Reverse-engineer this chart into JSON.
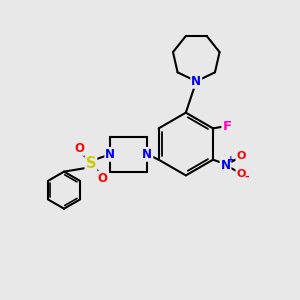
{
  "background_color": "#e8e8e8",
  "bond_color": "#000000",
  "bond_width": 1.5,
  "atom_colors": {
    "N": "#0000ee",
    "O": "#ff0000",
    "F": "#ff00bb",
    "S": "#cccc00",
    "C": "#000000"
  },
  "font_size": 8.5,
  "fig_size": [
    3.0,
    3.0
  ],
  "dpi": 100,
  "xlim": [
    0,
    10
  ],
  "ylim": [
    0,
    10
  ]
}
